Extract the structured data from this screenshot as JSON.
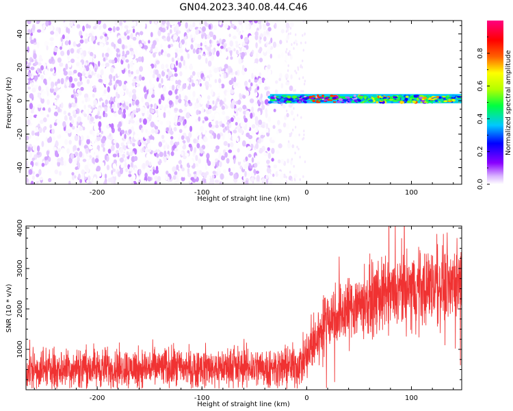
{
  "title": "GN04.2023.340.08.44.C46",
  "chart_data": [
    {
      "type": "heatmap",
      "name": "spectrogram",
      "xlabel": "Height of straight line (km)",
      "ylabel": "Frequency (Hz)",
      "xlim": [
        -268,
        148
      ],
      "ylim": [
        -50,
        48
      ],
      "x_ticks": [
        -200,
        -100,
        0,
        100
      ],
      "y_ticks": [
        -40,
        -20,
        0,
        20,
        40
      ],
      "colorbar": {
        "label": "Normalized spectral amplitude",
        "range": [
          0,
          1
        ],
        "ticks": [
          "0.0",
          "0.2",
          "0.4",
          "0.6",
          "0.8"
        ],
        "colormap": [
          "#ffffff",
          "#d9b3ff",
          "#8a00ff",
          "#0000ff",
          "#00c8ff",
          "#00ff40",
          "#b4ff00",
          "#ffff00",
          "#ff6000",
          "#ff0000",
          "#ff0080"
        ]
      },
      "features": {
        "noise_region_x": [
          -268,
          -20
        ],
        "noise_amplitude_range": [
          0.0,
          0.2
        ],
        "signal_band_x": [
          -35,
          148
        ],
        "signal_band_freq_hz": [
          -1,
          3
        ],
        "signal_amplitude_range": [
          0.1,
          0.9
        ]
      }
    },
    {
      "type": "line",
      "name": "snr",
      "xlabel": "Height of straight line (km)",
      "ylabel": "SNR (10 * v/v)",
      "xlim": [
        -268,
        148
      ],
      "ylim": [
        0,
        4050
      ],
      "x_ticks": [
        -200,
        -100,
        0,
        100
      ],
      "y_ticks": [
        1000,
        2000,
        3000,
        4000
      ],
      "color": "#f03232",
      "envelope": {
        "x": [
          -268,
          -200,
          -100,
          -20,
          -5,
          0,
          20,
          50,
          100,
          148
        ],
        "mean": [
          520,
          540,
          550,
          560,
          620,
          800,
          1750,
          2150,
          2500,
          2700
        ],
        "spread": [
          380,
          380,
          380,
          380,
          420,
          500,
          600,
          650,
          700,
          750
        ]
      }
    }
  ]
}
